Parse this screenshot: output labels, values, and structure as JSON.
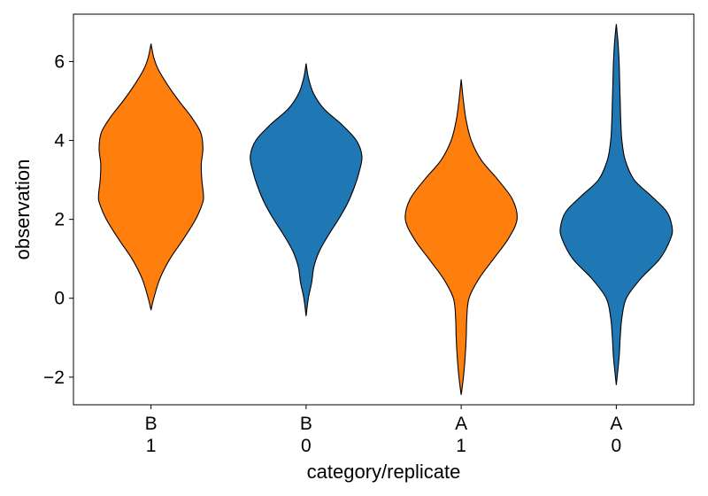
{
  "chart_data": {
    "type": "violin",
    "xlabel": "category/replicate",
    "ylabel": "observation",
    "ylim": [
      -2.7,
      7.2
    ],
    "yticks": [
      -2,
      0,
      2,
      4,
      6
    ],
    "yticklabels": [
      "−2",
      "0",
      "2",
      "4",
      "6"
    ],
    "grid": false,
    "legend": "none",
    "categories": [
      {
        "category": "B",
        "replicate": "1"
      },
      {
        "category": "B",
        "replicate": "0"
      },
      {
        "category": "A",
        "replicate": "1"
      },
      {
        "category": "A",
        "replicate": "0"
      }
    ],
    "violins": [
      {
        "color": "#ff7f0e",
        "min": -0.3,
        "max": 6.45,
        "median": 3.2,
        "density": [
          [
            -0.3,
            0.0
          ],
          [
            0.0,
            0.05
          ],
          [
            0.5,
            0.16
          ],
          [
            1.0,
            0.34
          ],
          [
            1.5,
            0.58
          ],
          [
            2.0,
            0.8
          ],
          [
            2.4,
            0.92
          ],
          [
            2.6,
            0.94
          ],
          [
            3.0,
            0.91
          ],
          [
            3.4,
            0.9
          ],
          [
            3.8,
            0.93
          ],
          [
            4.2,
            0.89
          ],
          [
            4.6,
            0.72
          ],
          [
            5.0,
            0.5
          ],
          [
            5.4,
            0.3
          ],
          [
            5.8,
            0.13
          ],
          [
            6.1,
            0.05
          ],
          [
            6.45,
            0.0
          ]
        ]
      },
      {
        "color": "#1f77b4",
        "min": -0.45,
        "max": 5.95,
        "median": 3.5,
        "density": [
          [
            -0.45,
            0.0
          ],
          [
            0.0,
            0.04
          ],
          [
            0.4,
            0.1
          ],
          [
            0.8,
            0.14
          ],
          [
            1.2,
            0.24
          ],
          [
            1.6,
            0.4
          ],
          [
            2.0,
            0.58
          ],
          [
            2.4,
            0.74
          ],
          [
            2.8,
            0.86
          ],
          [
            3.2,
            0.95
          ],
          [
            3.6,
            1.0
          ],
          [
            4.0,
            0.9
          ],
          [
            4.4,
            0.64
          ],
          [
            4.8,
            0.32
          ],
          [
            5.2,
            0.13
          ],
          [
            5.6,
            0.04
          ],
          [
            5.95,
            0.0
          ]
        ]
      },
      {
        "color": "#ff7f0e",
        "min": -2.45,
        "max": 5.55,
        "median": 2.0,
        "density": [
          [
            -2.45,
            0.0
          ],
          [
            -2.0,
            0.04
          ],
          [
            -1.5,
            0.07
          ],
          [
            -1.0,
            0.09
          ],
          [
            -0.5,
            0.1
          ],
          [
            0.0,
            0.14
          ],
          [
            0.5,
            0.32
          ],
          [
            1.0,
            0.58
          ],
          [
            1.5,
            0.84
          ],
          [
            2.0,
            1.0
          ],
          [
            2.5,
            0.92
          ],
          [
            3.0,
            0.66
          ],
          [
            3.5,
            0.36
          ],
          [
            4.0,
            0.18
          ],
          [
            4.5,
            0.09
          ],
          [
            5.0,
            0.04
          ],
          [
            5.55,
            0.0
          ]
        ]
      },
      {
        "color": "#1f77b4",
        "min": -2.2,
        "max": 6.95,
        "median": 1.8,
        "density": [
          [
            -2.2,
            0.0
          ],
          [
            -1.5,
            0.05
          ],
          [
            -1.0,
            0.07
          ],
          [
            -0.5,
            0.1
          ],
          [
            0.0,
            0.18
          ],
          [
            0.5,
            0.44
          ],
          [
            1.0,
            0.78
          ],
          [
            1.5,
            0.97
          ],
          [
            1.8,
            1.0
          ],
          [
            2.2,
            0.9
          ],
          [
            2.6,
            0.62
          ],
          [
            3.0,
            0.32
          ],
          [
            3.5,
            0.16
          ],
          [
            4.0,
            0.1
          ],
          [
            4.5,
            0.08
          ],
          [
            5.0,
            0.07
          ],
          [
            5.5,
            0.06
          ],
          [
            6.0,
            0.05
          ],
          [
            6.5,
            0.03
          ],
          [
            6.95,
            0.0
          ]
        ]
      }
    ]
  }
}
